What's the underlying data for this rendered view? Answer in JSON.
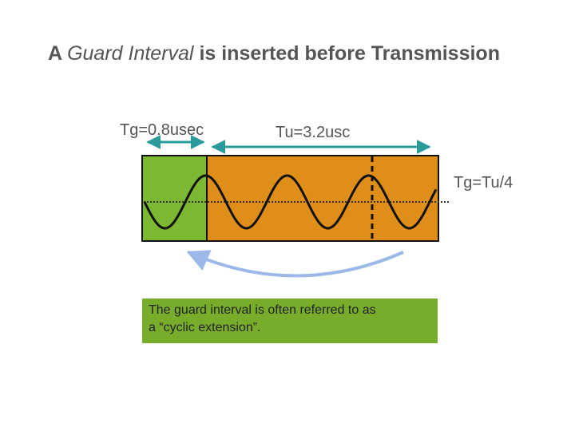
{
  "title": {
    "part1": "A ",
    "part2_italic": "Guard Interval",
    "part3": " is inserted before Transmission"
  },
  "labels": {
    "tg": "Tg=0.8usec",
    "tu": "Tu=3.2usc",
    "ratio": "Tg=Tu/4"
  },
  "callout": {
    "line1": "The guard interval is often referred to as",
    "line2": "a “cyclic extension”."
  },
  "colors": {
    "guard_fill": "#7cb832",
    "symbol_fill": "#e08e1a",
    "arrow_teal": "#2b9a9a",
    "cyclic_arrow": "#9bb8e8",
    "callout_bg": "#78ad2c"
  }
}
